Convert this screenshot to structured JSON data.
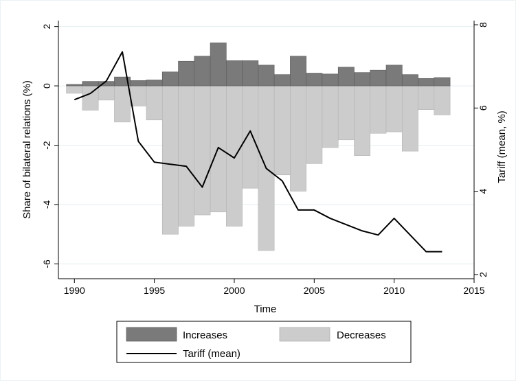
{
  "chart_data": {
    "type": "bar",
    "xlabel": "Time",
    "ylabel": "Share of bilateral relations (%)",
    "y2label": "Tariff (mean, %)",
    "xlim": [
      1989,
      2015
    ],
    "ylim": [
      -6.5,
      2.2
    ],
    "y2lim": [
      1.9,
      8.1
    ],
    "x_ticks": [
      "1990",
      "1995",
      "2000",
      "2005",
      "2010",
      "2015"
    ],
    "y_ticks": [
      "2",
      "0",
      "-2",
      "-4",
      "-6"
    ],
    "y2_ticks": [
      "8",
      "6",
      "4",
      "2"
    ],
    "grid": true,
    "legend_position": "bottom",
    "colors": {
      "increases": "#7a7a7a",
      "decreases": "#cccccc",
      "tariff": "#000000"
    },
    "series": [
      {
        "name": "Increases",
        "type": "bar",
        "x": [
          1990,
          1991,
          1992,
          1993,
          1994,
          1995,
          1996,
          1997,
          1998,
          1999,
          2000,
          2001,
          2002,
          2003,
          2004,
          2005,
          2006,
          2007,
          2008,
          2009,
          2010,
          2011,
          2012,
          2013
        ],
        "values": [
          0.05,
          0.15,
          0.15,
          0.3,
          0.18,
          0.2,
          0.47,
          0.83,
          1.0,
          1.45,
          0.85,
          0.85,
          0.7,
          0.38,
          1.0,
          0.43,
          0.4,
          0.63,
          0.45,
          0.53,
          0.7,
          0.38,
          0.25,
          0.28
        ]
      },
      {
        "name": "Decreases",
        "type": "bar",
        "x": [
          1990,
          1991,
          1992,
          1993,
          1994,
          1995,
          1996,
          1997,
          1998,
          1999,
          2000,
          2001,
          2002,
          2003,
          2004,
          2005,
          2006,
          2007,
          2008,
          2009,
          2010,
          2011,
          2012,
          2013
        ],
        "values": [
          -0.25,
          -0.82,
          -0.48,
          -1.22,
          -0.68,
          -1.15,
          -5.0,
          -4.73,
          -4.35,
          -4.25,
          -4.73,
          -3.45,
          -5.55,
          -3.0,
          -3.55,
          -2.62,
          -2.08,
          -1.82,
          -2.35,
          -1.6,
          -1.55,
          -2.2,
          -0.8,
          -0.98
        ]
      },
      {
        "name": "Tariff (mean)",
        "type": "line",
        "x": [
          1990,
          1991,
          1992,
          1993,
          1994,
          1995,
          1996,
          1997,
          1998,
          1999,
          2000,
          2001,
          2002,
          2003,
          2004,
          2005,
          2006,
          2007,
          2008,
          2009,
          2010,
          2011,
          2012,
          2013
        ],
        "values": [
          6.2,
          6.35,
          6.65,
          7.35,
          5.2,
          4.7,
          4.65,
          4.6,
          4.1,
          5.05,
          4.8,
          5.45,
          4.55,
          4.25,
          3.55,
          3.55,
          3.35,
          3.2,
          3.05,
          2.95,
          3.35,
          2.95,
          2.55,
          2.55
        ]
      }
    ]
  }
}
